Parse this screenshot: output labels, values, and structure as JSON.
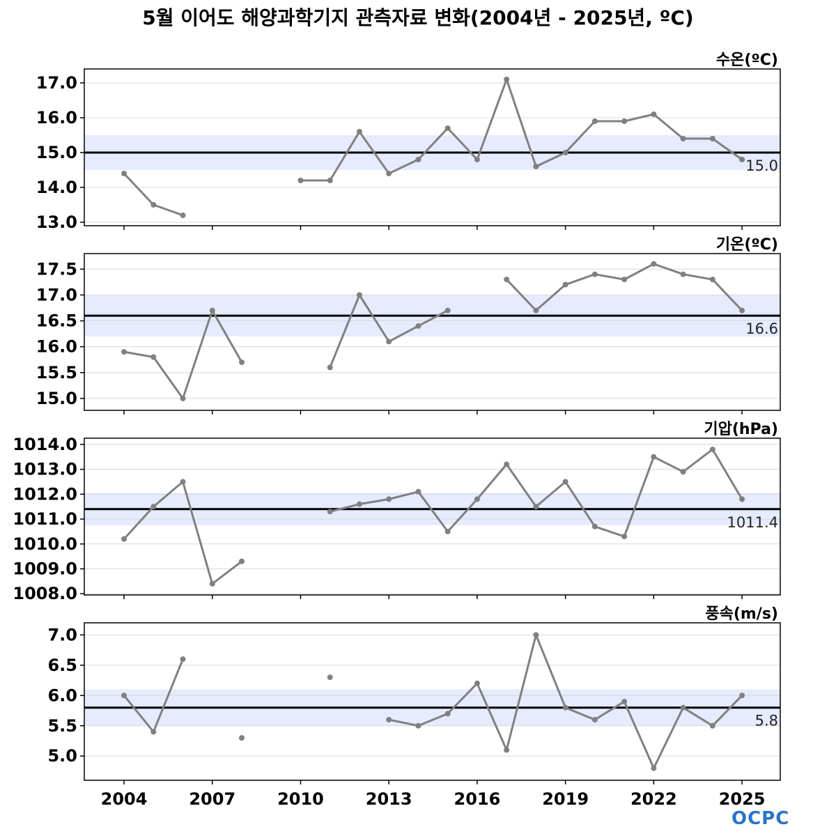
{
  "title": "5월 이어도 해양과학기지 관측자료 변화(2004년 - 2025년, ºC)",
  "logo": "OCPC",
  "colors": {
    "line": "#808080",
    "mean": "#000000",
    "band": "#e6ebff",
    "grid": "#d8d8d8"
  },
  "chart_data": [
    {
      "type": "line",
      "title": "수온(ºC)",
      "x": [
        2004,
        2005,
        2006,
        2007,
        2008,
        2009,
        2010,
        2011,
        2012,
        2013,
        2014,
        2015,
        2016,
        2017,
        2018,
        2019,
        2020,
        2021,
        2022,
        2023,
        2024,
        2025
      ],
      "values": [
        14.4,
        13.5,
        13.2,
        null,
        null,
        null,
        14.2,
        14.2,
        15.6,
        14.4,
        14.8,
        15.7,
        14.8,
        17.1,
        14.6,
        15.0,
        15.9,
        15.9,
        16.1,
        15.4,
        15.4,
        14.8
      ],
      "mean": 15.0,
      "mean_label": "15.0",
      "band": [
        14.5,
        15.5
      ],
      "ylim": [
        12.9,
        17.4
      ],
      "yticks": [
        13.0,
        14.0,
        15.0,
        16.0,
        17.0
      ],
      "ytick_labels": [
        "13.0",
        "14.0",
        "15.0",
        "16.0",
        "17.0"
      ],
      "grid": true
    },
    {
      "type": "line",
      "title": "기온(ºC)",
      "x": [
        2004,
        2005,
        2006,
        2007,
        2008,
        2009,
        2010,
        2011,
        2012,
        2013,
        2014,
        2015,
        2016,
        2017,
        2018,
        2019,
        2020,
        2021,
        2022,
        2023,
        2024,
        2025
      ],
      "values": [
        15.9,
        15.8,
        15.0,
        16.7,
        15.7,
        null,
        null,
        15.6,
        17.0,
        16.1,
        16.4,
        16.7,
        null,
        17.3,
        16.7,
        17.2,
        17.4,
        17.3,
        17.6,
        17.4,
        17.3,
        16.7
      ],
      "mean": 16.6,
      "mean_label": "16.6",
      "band": [
        16.2,
        17.0
      ],
      "ylim": [
        14.77,
        17.8
      ],
      "yticks": [
        15.0,
        15.5,
        16.0,
        16.5,
        17.0,
        17.5
      ],
      "ytick_labels": [
        "15.0",
        "15.5",
        "16.0",
        "16.5",
        "17.0",
        "17.5"
      ],
      "grid": true
    },
    {
      "type": "line",
      "title": "기압(hPa)",
      "x": [
        2004,
        2005,
        2006,
        2007,
        2008,
        2009,
        2010,
        2011,
        2012,
        2013,
        2014,
        2015,
        2016,
        2017,
        2018,
        2019,
        2020,
        2021,
        2022,
        2023,
        2024,
        2025
      ],
      "values": [
        1010.2,
        1011.5,
        1012.5,
        1008.4,
        1009.3,
        null,
        null,
        1011.3,
        1011.6,
        1011.8,
        1012.1,
        1010.5,
        1011.8,
        1013.2,
        1011.5,
        1012.5,
        1010.7,
        1010.3,
        1013.5,
        1012.9,
        1013.8,
        1011.8
      ],
      "mean": 1011.4,
      "mean_label": "1011.4",
      "band": [
        1010.75,
        1012.05
      ],
      "ylim": [
        1007.95,
        1014.25
      ],
      "yticks": [
        1008.0,
        1009.0,
        1010.0,
        1011.0,
        1012.0,
        1013.0,
        1014.0
      ],
      "ytick_labels": [
        "1008.0",
        "1009.0",
        "1010.0",
        "1011.0",
        "1012.0",
        "1013.0",
        "1014.0"
      ],
      "grid": true
    },
    {
      "type": "line",
      "title": "풍속(m/s)",
      "x": [
        2004,
        2005,
        2006,
        2007,
        2008,
        2009,
        2010,
        2011,
        2012,
        2013,
        2014,
        2015,
        2016,
        2017,
        2018,
        2019,
        2020,
        2021,
        2022,
        2023,
        2024,
        2025
      ],
      "values": [
        6.0,
        5.4,
        6.6,
        null,
        5.3,
        null,
        null,
        6.3,
        null,
        5.6,
        5.5,
        5.7,
        6.2,
        5.1,
        7.0,
        5.8,
        5.6,
        5.9,
        4.8,
        5.8,
        5.5,
        6.0
      ],
      "mean": 5.8,
      "mean_label": "5.8",
      "band": [
        5.5,
        6.1
      ],
      "ylim": [
        4.6,
        7.2
      ],
      "yticks": [
        5.0,
        5.5,
        6.0,
        6.5,
        7.0
      ],
      "ytick_labels": [
        "5.0",
        "5.5",
        "6.0",
        "6.5",
        "7.0"
      ],
      "grid": true
    }
  ],
  "xaxis": {
    "ticks": [
      2004,
      2007,
      2010,
      2013,
      2016,
      2019,
      2022,
      2025
    ],
    "tick_labels": [
      "2004",
      "2007",
      "2010",
      "2013",
      "2016",
      "2019",
      "2022",
      "2025"
    ],
    "xlim": [
      2002.65,
      2026.3
    ]
  }
}
